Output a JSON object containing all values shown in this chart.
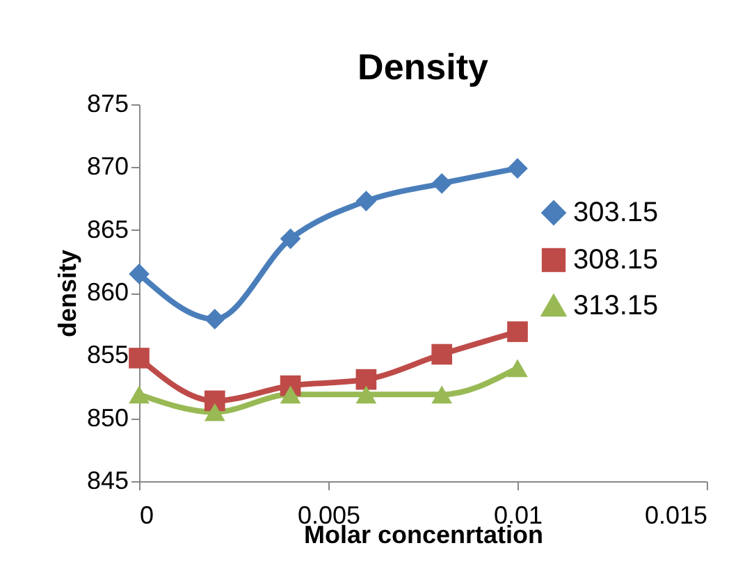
{
  "chart_data": {
    "type": "line",
    "title": "Density",
    "xlabel": "Molar concenrtation",
    "ylabel": "density",
    "x": [
      0,
      0.002,
      0.004,
      0.006,
      0.008,
      0.01
    ],
    "series": [
      {
        "name": "303.15",
        "color": "#4a7ebb",
        "marker": "diamond",
        "values": [
          861.5,
          857.9,
          864.3,
          867.3,
          868.7,
          869.9
        ]
      },
      {
        "name": "308.15",
        "color": "#be4b48",
        "marker": "square",
        "values": [
          854.8,
          851.4,
          852.6,
          853.1,
          855.1,
          856.9
        ]
      },
      {
        "name": "313.15",
        "color": "#98b954",
        "marker": "triangle",
        "values": [
          851.9,
          850.5,
          851.9,
          851.9,
          851.9,
          854.0
        ]
      }
    ],
    "xlim": [
      0,
      0.015
    ],
    "xticks": [
      0,
      0.005,
      0.01,
      0.015
    ],
    "ylim": [
      845,
      875
    ],
    "yticks": [
      845,
      850,
      855,
      860,
      865,
      870,
      875
    ],
    "grid": false,
    "legend": "right"
  }
}
